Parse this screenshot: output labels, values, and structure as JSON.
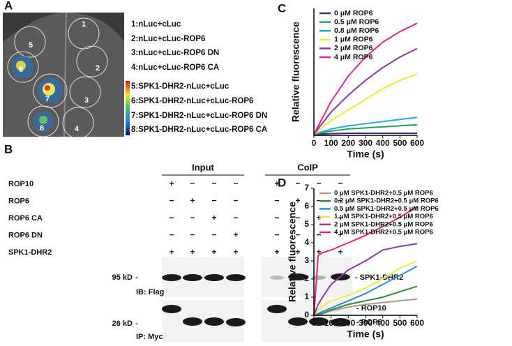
{
  "panels": {
    "a": "A",
    "b": "B",
    "c": "C",
    "d": "D"
  },
  "panel_a": {
    "circle_labels": [
      "1",
      "2",
      "3",
      "4",
      "5",
      "6",
      "7",
      "8"
    ],
    "legend": [
      "1:nLuc+cLuc",
      "2:nLuc+cLuc-ROP6",
      "3:nLuc+cLuc-ROP6 DN",
      "4:nLuc+cLuc-ROP6 CA",
      "5:SPK1-DHR2-nLuc+cLuc",
      "6:SPK1-DHR2-nLuc+cLuc-ROP6",
      "7:SPK1-DHR2-nLuc+cLuc-ROP6 DN",
      "8:SPK1-DHR2-nLuc+cLuc-ROP6 CA"
    ]
  },
  "panel_b": {
    "groups": [
      "Input",
      "CoIP"
    ],
    "rows": [
      {
        "label": "ROP10",
        "signs": [
          "+",
          "−",
          "−",
          "−",
          "+",
          "−",
          "−",
          "−"
        ]
      },
      {
        "label": "ROP6",
        "signs": [
          "−",
          "+",
          "−",
          "−",
          "−",
          "+",
          "−",
          "−"
        ]
      },
      {
        "label": "ROP6 CA",
        "signs": [
          "−",
          "−",
          "+",
          "−",
          "−",
          "−",
          "+",
          "−"
        ]
      },
      {
        "label": "ROP6 DN",
        "signs": [
          "−",
          "−",
          "−",
          "+",
          "−",
          "−",
          "−",
          "+"
        ]
      },
      {
        "label": "SPK1-DHR2",
        "signs": [
          "+",
          "+",
          "+",
          "+",
          "+",
          "+",
          "+",
          "+"
        ]
      }
    ],
    "flag_size": "95 kD",
    "flag_label": "IB: Flag",
    "myc_size": "26 kD",
    "myc_label": "IP: Myc",
    "band_spk": "- SPK1-DHR2",
    "band_rop10": "- ROP10",
    "band_rop6": "- ROP6"
  },
  "chart_data": [
    {
      "type": "line",
      "x_label": "Time (s)",
      "y_label": "Relative fluorescence",
      "xlim": [
        0,
        600
      ],
      "xticks": [
        0,
        100,
        200,
        300,
        400,
        500,
        600
      ],
      "ylim": [
        0,
        6
      ],
      "x": [
        0,
        100,
        200,
        300,
        400,
        500,
        600
      ],
      "series": [
        {
          "name": "0 μM ROP6",
          "color": "#4a2a6a",
          "values": [
            0.05,
            0.08,
            0.1,
            0.1,
            0.1,
            0.1,
            0.1
          ]
        },
        {
          "name": "0.5 μM ROP6",
          "color": "#1fa35a",
          "values": [
            0.05,
            0.2,
            0.3,
            0.35,
            0.4,
            0.45,
            0.5
          ]
        },
        {
          "name": "0.8 μM ROP6",
          "color": "#29a8e0",
          "values": [
            0.05,
            0.3,
            0.45,
            0.55,
            0.65,
            0.75,
            0.85
          ]
        },
        {
          "name": "1 μM ROP6",
          "color": "#f0e830",
          "values": [
            0.05,
            0.7,
            1.2,
            1.7,
            2.2,
            2.6,
            2.9
          ]
        },
        {
          "name": "2 μM ROP6",
          "color": "#8a3a9a",
          "values": [
            0.05,
            1.1,
            1.9,
            2.6,
            3.2,
            3.7,
            4.1
          ]
        },
        {
          "name": "4 μM ROP6",
          "color": "#e8208a",
          "values": [
            0.05,
            1.6,
            2.8,
            3.7,
            4.4,
            4.9,
            5.3
          ]
        }
      ]
    },
    {
      "type": "line",
      "x_label": "Time (s)",
      "y_label": "Relative fluorescence",
      "xlim": [
        0,
        600
      ],
      "xticks": [
        0,
        100,
        200,
        300,
        400,
        500,
        600
      ],
      "ylim": [
        0,
        7
      ],
      "yticks": [
        0,
        1,
        2,
        3,
        4,
        5,
        6,
        7
      ],
      "x": [
        0,
        25,
        50,
        100,
        200,
        300,
        400,
        500,
        600
      ],
      "series": [
        {
          "name": "0 μM SPK1-DHR2+0.5 μM ROP6",
          "color": "#b09a88",
          "values": [
            0,
            0.05,
            0.1,
            0.25,
            0.45,
            0.6,
            0.7,
            0.8,
            0.9
          ]
        },
        {
          "name": "0.2 μM SPK1-DHR2+0.5 μM ROP6",
          "color": "#2e8b3a",
          "values": [
            0,
            0.05,
            0.1,
            0.3,
            0.6,
            0.8,
            1.0,
            1.3,
            1.6
          ]
        },
        {
          "name": "0.5 μM SPK1-DHR2+0.5 μM ROP6",
          "color": "#2a8fd8",
          "values": [
            0,
            0.1,
            0.2,
            0.4,
            0.8,
            1.2,
            1.7,
            2.2,
            2.7
          ]
        },
        {
          "name": "1 μM SPK1-DHR2+0.5 μM ROP6",
          "color": "#eee84a",
          "values": [
            0,
            0.3,
            0.5,
            0.8,
            1.1,
            1.5,
            2.0,
            2.6,
            3.0
          ]
        },
        {
          "name": "2 μM SPK1-DHR2+0.5 μM ROP6",
          "color": "#8a3aa0",
          "values": [
            0,
            0.6,
            1.0,
            1.7,
            2.5,
            3.0,
            3.6,
            3.8,
            3.95
          ]
        },
        {
          "name": "4 μM SPK1-DHR2+0.5 μM ROP6",
          "color": "#e8207a",
          "values": [
            0,
            3.3,
            3.45,
            3.6,
            4.0,
            4.4,
            4.9,
            5.4,
            6.0
          ]
        }
      ]
    }
  ]
}
